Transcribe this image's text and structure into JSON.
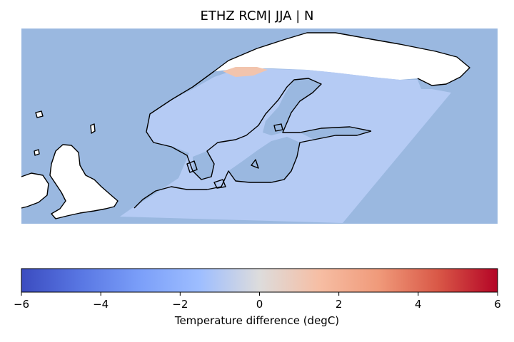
{
  "title": "ETHZ RCM| JJA | N",
  "colorbar": {
    "label": "Temperature difference (degC)",
    "min": -6,
    "max": 6,
    "colormap": "coolwarm",
    "ticks": [
      {
        "value": -6,
        "label": "−6"
      },
      {
        "value": -4,
        "label": "−4"
      },
      {
        "value": -2,
        "label": "−2"
      },
      {
        "value": 0,
        "label": "0"
      },
      {
        "value": 2,
        "label": "2"
      },
      {
        "value": 4,
        "label": "4"
      },
      {
        "value": 6,
        "label": "6"
      }
    ]
  },
  "map": {
    "ocean_color": "#9ab8e0",
    "land_outside_domain_color": "#ffffff",
    "coastline_color": "#000000",
    "field_typical_value": -1.3,
    "field_typical_color": "#b5cbf4",
    "field_warm_spot_value": 1.5,
    "field_warm_spot_color": "#f2c4ad"
  }
}
